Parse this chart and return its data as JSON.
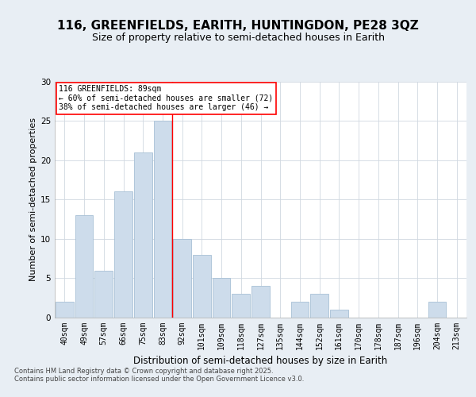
{
  "title1": "116, GREENFIELDS, EARITH, HUNTINGDON, PE28 3QZ",
  "title2": "Size of property relative to semi-detached houses in Earith",
  "xlabel": "Distribution of semi-detached houses by size in Earith",
  "ylabel": "Number of semi-detached properties",
  "footer": "Contains HM Land Registry data © Crown copyright and database right 2025.\nContains public sector information licensed under the Open Government Licence v3.0.",
  "bin_labels": [
    "40sqm",
    "49sqm",
    "57sqm",
    "66sqm",
    "75sqm",
    "83sqm",
    "92sqm",
    "101sqm",
    "109sqm",
    "118sqm",
    "127sqm",
    "135sqm",
    "144sqm",
    "152sqm",
    "161sqm",
    "170sqm",
    "178sqm",
    "187sqm",
    "196sqm",
    "204sqm",
    "213sqm"
  ],
  "bar_values": [
    2,
    13,
    6,
    16,
    21,
    25,
    10,
    8,
    5,
    3,
    4,
    0,
    2,
    3,
    1,
    0,
    0,
    0,
    0,
    2,
    0
  ],
  "bar_color": "#cddceb",
  "bar_edge_color": "#a8c0d6",
  "vline_x": 5.5,
  "annotation_text": "116 GREENFIELDS: 89sqm\n← 60% of semi-detached houses are smaller (72)\n38% of semi-detached houses are larger (46) →",
  "annotation_box_color": "white",
  "annotation_box_edge": "red",
  "ylim": [
    0,
    30
  ],
  "yticks": [
    0,
    5,
    10,
    15,
    20,
    25,
    30
  ],
  "bg_color": "#e8eef4",
  "plot_bg_color": "#ffffff",
  "title1_fontsize": 11,
  "title2_fontsize": 9,
  "ylabel_fontsize": 8,
  "xlabel_fontsize": 8.5,
  "tick_fontsize": 7,
  "annotation_fontsize": 7,
  "footer_fontsize": 6,
  "grid_color": "#d0d8e0"
}
